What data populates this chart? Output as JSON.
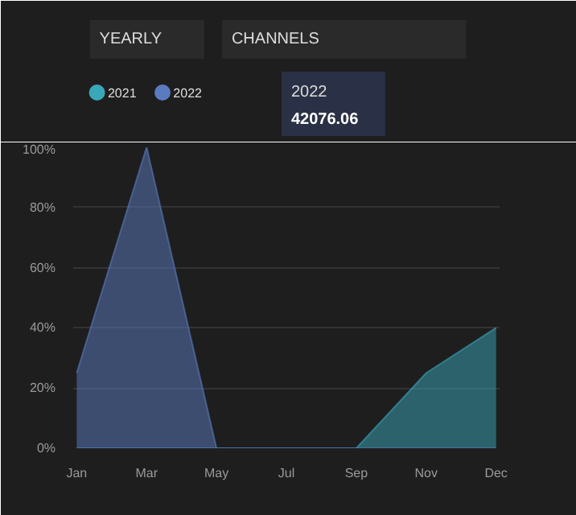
{
  "chart_data": {
    "type": "area",
    "categories": [
      "Jan",
      "Mar",
      "May",
      "Jul",
      "Sep",
      "Nov",
      "Dec"
    ],
    "series": [
      {
        "name": "2021",
        "color": "#3aa6b9",
        "values": [
          0,
          0,
          0,
          0,
          0,
          25,
          40
        ]
      },
      {
        "name": "2022",
        "color": "#5b7bc0",
        "values": [
          25,
          100,
          0,
          0,
          0,
          0,
          0
        ]
      }
    ],
    "ylim": [
      0,
      100
    ],
    "yticks": [
      {
        "value": 0,
        "label": "0%"
      },
      {
        "value": 20,
        "label": "20%"
      },
      {
        "value": 40,
        "label": "40%"
      },
      {
        "value": 60,
        "label": "60%"
      },
      {
        "value": 80,
        "label": "80%"
      },
      {
        "value": 100,
        "label": "100%"
      }
    ],
    "grid": "y",
    "legend": "top left",
    "annotations": [
      "YEARLY",
      "CHANNELS",
      "42076.06"
    ]
  }
}
